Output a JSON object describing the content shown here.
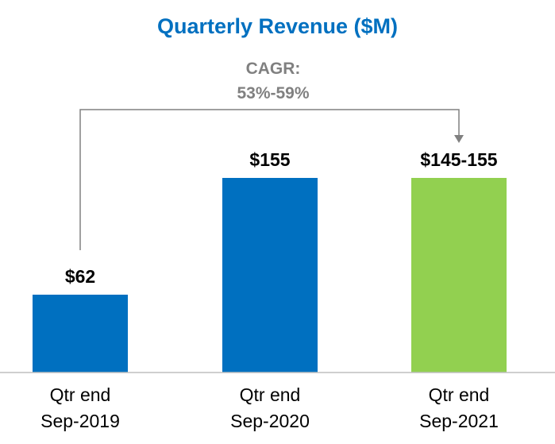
{
  "colors": {
    "title": "#0070c0",
    "bar_primary": "#0070c0",
    "bar_accent": "#92d050",
    "annotation": "#808080",
    "text": "#000000",
    "axis": "#bfbfbf"
  },
  "chart_data": {
    "type": "bar",
    "title": "Quarterly Revenue ($M)",
    "xlabel": "",
    "ylabel": "",
    "ylim": [
      0,
      155
    ],
    "grid": false,
    "categories": [
      {
        "line1": "Qtr end",
        "line2": "Sep-2019"
      },
      {
        "line1": "Qtr end",
        "line2": "Sep-2020"
      },
      {
        "line1": "Qtr end",
        "line2": "Sep-2021"
      }
    ],
    "values": [
      62,
      155,
      155
    ],
    "value_labels": [
      "$62",
      "$155",
      "$145-155"
    ],
    "bar_colors": [
      "#0070c0",
      "#0070c0",
      "#92d050"
    ],
    "annotation": {
      "line1": "CAGR:",
      "line2": "53%-59%",
      "from_category": 0,
      "to_category": 2
    }
  }
}
